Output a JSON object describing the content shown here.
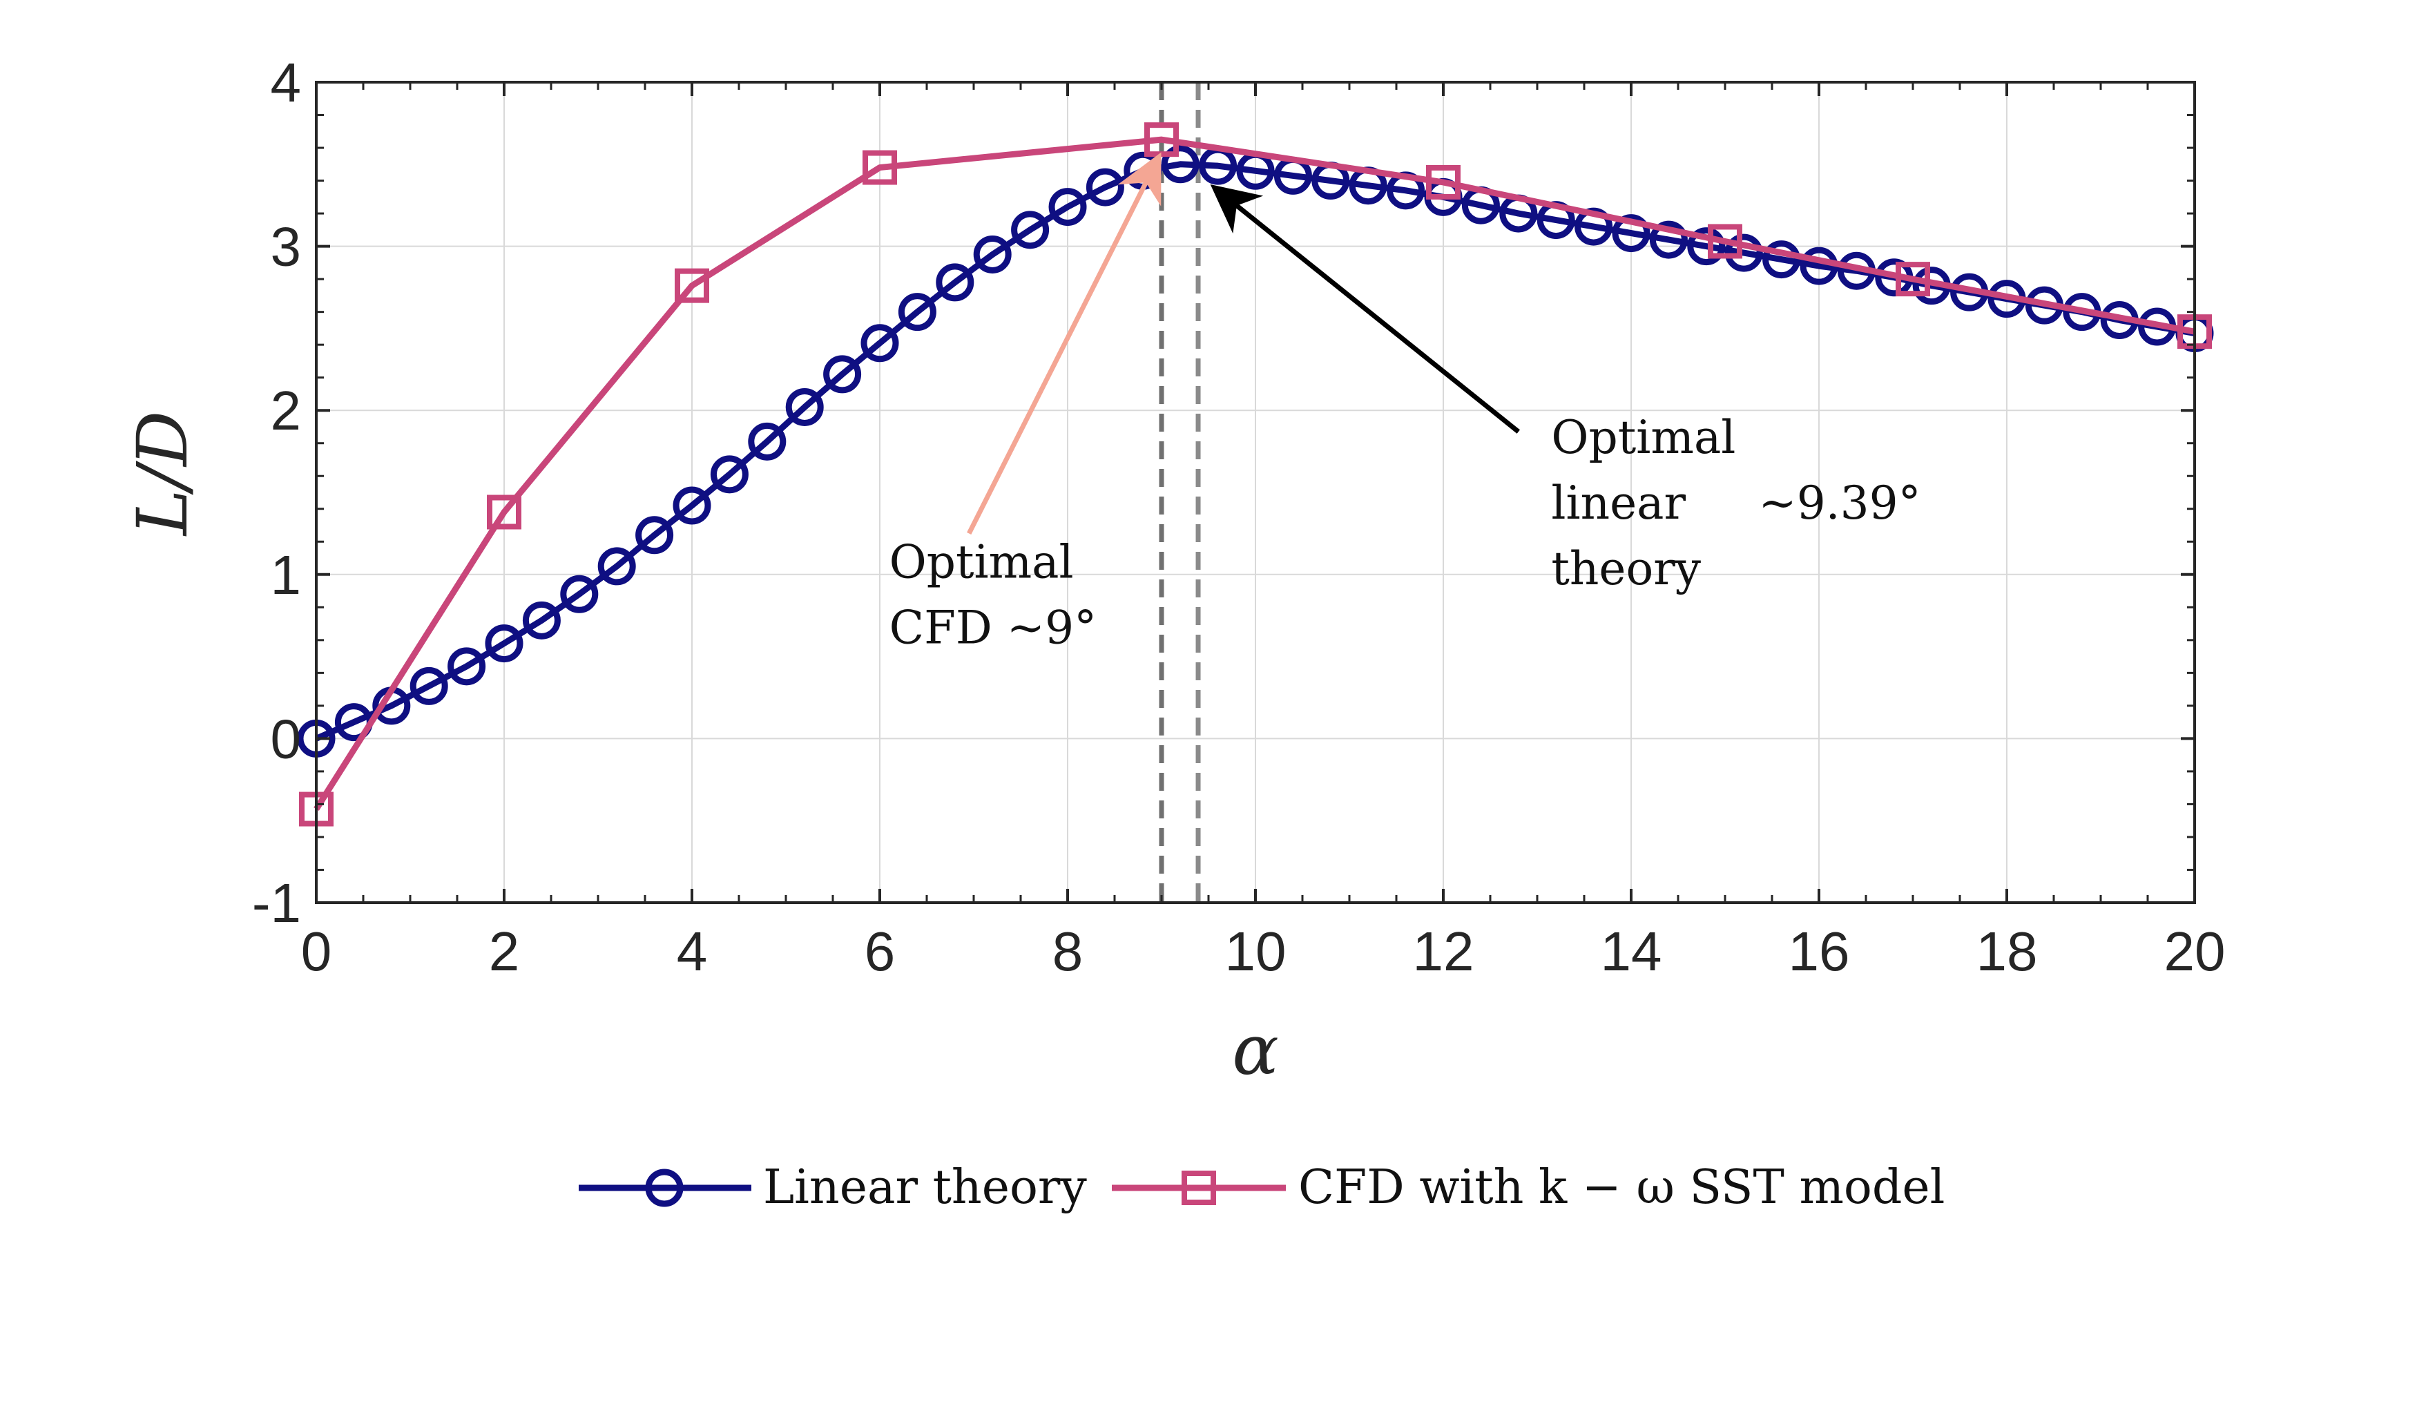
{
  "chart_data": {
    "type": "line",
    "xlabel": "α",
    "ylabel": "L/D",
    "xlim": [
      0,
      20
    ],
    "ylim": [
      -1,
      4
    ],
    "x_ticks": [
      "0",
      "2",
      "4",
      "6",
      "8",
      "10",
      "12",
      "14",
      "16",
      "18",
      "20"
    ],
    "y_ticks": [
      "-1",
      "0",
      "1",
      "2",
      "3",
      "4"
    ],
    "grid": true,
    "legend_position": "bottom",
    "series": [
      {
        "name": "Linear theory",
        "color": "#0f0f82",
        "marker": "circle",
        "x": [
          0,
          0.4,
          0.8,
          1.2,
          1.6,
          2.0,
          2.4,
          2.8,
          3.2,
          3.6,
          4.0,
          4.4,
          4.8,
          5.2,
          5.6,
          6.0,
          6.4,
          6.8,
          7.2,
          7.6,
          8.0,
          8.4,
          8.8,
          9.2,
          9.6,
          10.0,
          10.4,
          10.8,
          11.2,
          11.6,
          12.0,
          12.4,
          12.8,
          13.2,
          13.6,
          14.0,
          14.4,
          14.8,
          15.2,
          15.6,
          16.0,
          16.4,
          16.8,
          17.2,
          17.6,
          18.0,
          18.4,
          18.8,
          19.2,
          19.6,
          20.0
        ],
        "y": [
          0.0,
          0.1,
          0.2,
          0.32,
          0.44,
          0.58,
          0.72,
          0.88,
          1.05,
          1.24,
          1.42,
          1.61,
          1.81,
          2.02,
          2.22,
          2.41,
          2.6,
          2.78,
          2.95,
          3.1,
          3.24,
          3.36,
          3.46,
          3.5,
          3.49,
          3.46,
          3.43,
          3.4,
          3.37,
          3.34,
          3.3,
          3.25,
          3.2,
          3.16,
          3.12,
          3.08,
          3.04,
          3.0,
          2.96,
          2.92,
          2.88,
          2.85,
          2.81,
          2.76,
          2.72,
          2.68,
          2.64,
          2.6,
          2.55,
          2.51,
          2.47
        ]
      },
      {
        "name": "CFD with k − ω SST model",
        "color": "#c9467a",
        "marker": "square",
        "x": [
          0,
          2,
          4,
          6,
          9,
          12,
          15,
          17,
          20
        ],
        "y": [
          -0.43,
          1.38,
          2.76,
          3.48,
          3.65,
          3.39,
          3.03,
          2.8,
          2.48
        ]
      }
    ],
    "reference_lines": [
      {
        "x": 9,
        "style": "dashed",
        "color": "#707070"
      },
      {
        "x": 9.39,
        "style": "dashed",
        "color": "#8a8a8a"
      }
    ],
    "annotations": [
      {
        "lines": [
          "Optimal",
          "CFD  ~9°"
        ],
        "text_x": 6.1,
        "text_y": 0.98,
        "arrow_from": [
          6.95,
          1.25
        ],
        "arrow_to": [
          8.95,
          3.52
        ],
        "arrow_color": "#f4a694"
      },
      {
        "lines": [
          "Optimal",
          "linear",
          "theory"
        ],
        "side_text": "~9.39°",
        "text_x": 13.15,
        "text_y": 1.74,
        "arrow_from": [
          12.8,
          1.87
        ],
        "arrow_to": [
          9.6,
          3.34
        ],
        "arrow_color": "#000000"
      }
    ]
  }
}
